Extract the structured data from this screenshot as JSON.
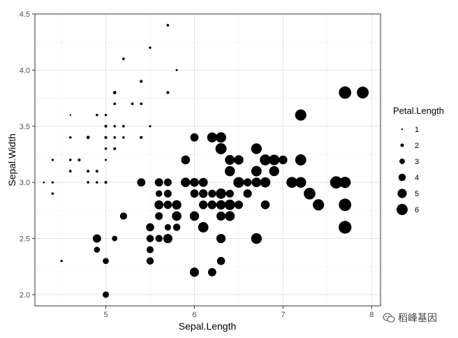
{
  "chart_data": {
    "type": "scatter",
    "xlabel": "Sepal.Length",
    "ylabel": "Sepal.Width",
    "xlim": [
      4.2,
      8.1
    ],
    "ylim": [
      1.9,
      4.5
    ],
    "x_ticks": [
      5,
      6,
      7,
      8
    ],
    "y_ticks": [
      2.0,
      2.5,
      3.0,
      3.5,
      4.0,
      4.5
    ],
    "x_tick_labels": [
      "5",
      "6",
      "7",
      "8"
    ],
    "y_tick_labels": [
      "2.0",
      "2.5",
      "3.0",
      "3.5",
      "4.0",
      "4.5"
    ],
    "grid": true,
    "legend": {
      "title": "Petal.Length",
      "position": "right",
      "labels": [
        "1",
        "2",
        "3",
        "4",
        "5",
        "6"
      ],
      "values": [
        1,
        2,
        3,
        4,
        5,
        6
      ]
    },
    "size_var": "Petal.Length",
    "point_color": "#000000",
    "points": [
      {
        "x": 5.1,
        "y": 3.5,
        "size": 1.4
      },
      {
        "x": 4.9,
        "y": 3.0,
        "size": 1.4
      },
      {
        "x": 4.7,
        "y": 3.2,
        "size": 1.3
      },
      {
        "x": 4.6,
        "y": 3.1,
        "size": 1.5
      },
      {
        "x": 5.0,
        "y": 3.6,
        "size": 1.4
      },
      {
        "x": 5.4,
        "y": 3.9,
        "size": 1.7
      },
      {
        "x": 4.6,
        "y": 3.4,
        "size": 1.4
      },
      {
        "x": 5.0,
        "y": 3.4,
        "size": 1.5
      },
      {
        "x": 4.4,
        "y": 2.9,
        "size": 1.4
      },
      {
        "x": 4.9,
        "y": 3.1,
        "size": 1.5
      },
      {
        "x": 5.4,
        "y": 3.7,
        "size": 1.5
      },
      {
        "x": 4.8,
        "y": 3.4,
        "size": 1.6
      },
      {
        "x": 4.8,
        "y": 3.0,
        "size": 1.4
      },
      {
        "x": 4.3,
        "y": 3.0,
        "size": 1.1
      },
      {
        "x": 5.8,
        "y": 4.0,
        "size": 1.2
      },
      {
        "x": 5.7,
        "y": 4.4,
        "size": 1.5
      },
      {
        "x": 5.4,
        "y": 3.9,
        "size": 1.3
      },
      {
        "x": 5.1,
        "y": 3.5,
        "size": 1.4
      },
      {
        "x": 5.7,
        "y": 3.8,
        "size": 1.7
      },
      {
        "x": 5.1,
        "y": 3.8,
        "size": 1.5
      },
      {
        "x": 5.4,
        "y": 3.4,
        "size": 1.7
      },
      {
        "x": 5.1,
        "y": 3.7,
        "size": 1.5
      },
      {
        "x": 4.6,
        "y": 3.6,
        "size": 1.0
      },
      {
        "x": 5.1,
        "y": 3.3,
        "size": 1.7
      },
      {
        "x": 4.8,
        "y": 3.4,
        "size": 1.9
      },
      {
        "x": 5.0,
        "y": 3.0,
        "size": 1.6
      },
      {
        "x": 5.0,
        "y": 3.4,
        "size": 1.6
      },
      {
        "x": 5.2,
        "y": 3.5,
        "size": 1.5
      },
      {
        "x": 5.2,
        "y": 3.4,
        "size": 1.4
      },
      {
        "x": 4.7,
        "y": 3.2,
        "size": 1.6
      },
      {
        "x": 4.8,
        "y": 3.1,
        "size": 1.6
      },
      {
        "x": 5.4,
        "y": 3.4,
        "size": 1.5
      },
      {
        "x": 5.2,
        "y": 4.1,
        "size": 1.5
      },
      {
        "x": 5.5,
        "y": 4.2,
        "size": 1.4
      },
      {
        "x": 4.9,
        "y": 3.1,
        "size": 1.5
      },
      {
        "x": 5.0,
        "y": 3.2,
        "size": 1.2
      },
      {
        "x": 5.5,
        "y": 3.5,
        "size": 1.3
      },
      {
        "x": 4.9,
        "y": 3.6,
        "size": 1.4
      },
      {
        "x": 4.4,
        "y": 3.0,
        "size": 1.3
      },
      {
        "x": 5.1,
        "y": 3.4,
        "size": 1.5
      },
      {
        "x": 5.0,
        "y": 3.5,
        "size": 1.3
      },
      {
        "x": 4.5,
        "y": 2.3,
        "size": 1.3
      },
      {
        "x": 4.4,
        "y": 3.2,
        "size": 1.3
      },
      {
        "x": 5.0,
        "y": 3.5,
        "size": 1.6
      },
      {
        "x": 5.1,
        "y": 3.8,
        "size": 1.9
      },
      {
        "x": 4.8,
        "y": 3.0,
        "size": 1.4
      },
      {
        "x": 5.1,
        "y": 3.8,
        "size": 1.6
      },
      {
        "x": 4.6,
        "y": 3.2,
        "size": 1.4
      },
      {
        "x": 5.3,
        "y": 3.7,
        "size": 1.5
      },
      {
        "x": 5.0,
        "y": 3.3,
        "size": 1.4
      },
      {
        "x": 7.0,
        "y": 3.2,
        "size": 4.7
      },
      {
        "x": 6.4,
        "y": 3.2,
        "size": 4.5
      },
      {
        "x": 6.9,
        "y": 3.1,
        "size": 4.9
      },
      {
        "x": 5.5,
        "y": 2.3,
        "size": 4.0
      },
      {
        "x": 6.5,
        "y": 2.8,
        "size": 4.6
      },
      {
        "x": 5.7,
        "y": 2.8,
        "size": 4.5
      },
      {
        "x": 6.3,
        "y": 3.3,
        "size": 4.7
      },
      {
        "x": 4.9,
        "y": 2.4,
        "size": 3.3
      },
      {
        "x": 6.6,
        "y": 2.9,
        "size": 4.6
      },
      {
        "x": 5.2,
        "y": 2.7,
        "size": 3.9
      },
      {
        "x": 5.0,
        "y": 2.0,
        "size": 3.5
      },
      {
        "x": 5.9,
        "y": 3.0,
        "size": 4.2
      },
      {
        "x": 6.0,
        "y": 2.2,
        "size": 4.0
      },
      {
        "x": 6.1,
        "y": 2.9,
        "size": 4.7
      },
      {
        "x": 5.6,
        "y": 2.9,
        "size": 3.6
      },
      {
        "x": 6.7,
        "y": 3.1,
        "size": 4.4
      },
      {
        "x": 5.6,
        "y": 3.0,
        "size": 4.5
      },
      {
        "x": 5.8,
        "y": 2.7,
        "size": 4.1
      },
      {
        "x": 6.2,
        "y": 2.2,
        "size": 4.5
      },
      {
        "x": 5.6,
        "y": 2.5,
        "size": 3.9
      },
      {
        "x": 5.9,
        "y": 3.2,
        "size": 4.8
      },
      {
        "x": 6.1,
        "y": 2.8,
        "size": 4.0
      },
      {
        "x": 6.3,
        "y": 2.5,
        "size": 4.9
      },
      {
        "x": 6.1,
        "y": 2.8,
        "size": 4.7
      },
      {
        "x": 6.4,
        "y": 2.9,
        "size": 4.3
      },
      {
        "x": 6.6,
        "y": 3.0,
        "size": 4.4
      },
      {
        "x": 6.8,
        "y": 2.8,
        "size": 4.8
      },
      {
        "x": 6.7,
        "y": 3.0,
        "size": 5.0
      },
      {
        "x": 6.0,
        "y": 2.9,
        "size": 4.5
      },
      {
        "x": 5.7,
        "y": 2.6,
        "size": 3.5
      },
      {
        "x": 5.5,
        "y": 2.4,
        "size": 3.8
      },
      {
        "x": 5.5,
        "y": 2.4,
        "size": 3.7
      },
      {
        "x": 5.8,
        "y": 2.7,
        "size": 3.9
      },
      {
        "x": 6.0,
        "y": 2.7,
        "size": 5.1
      },
      {
        "x": 5.4,
        "y": 3.0,
        "size": 4.5
      },
      {
        "x": 6.0,
        "y": 3.4,
        "size": 4.5
      },
      {
        "x": 6.7,
        "y": 3.1,
        "size": 4.7
      },
      {
        "x": 6.3,
        "y": 2.3,
        "size": 4.4
      },
      {
        "x": 5.6,
        "y": 3.0,
        "size": 4.1
      },
      {
        "x": 5.5,
        "y": 2.5,
        "size": 4.0
      },
      {
        "x": 5.5,
        "y": 2.6,
        "size": 4.4
      },
      {
        "x": 6.1,
        "y": 3.0,
        "size": 4.6
      },
      {
        "x": 5.8,
        "y": 2.6,
        "size": 4.0
      },
      {
        "x": 5.0,
        "y": 2.3,
        "size": 3.3
      },
      {
        "x": 5.6,
        "y": 2.7,
        "size": 4.2
      },
      {
        "x": 5.7,
        "y": 3.0,
        "size": 4.2
      },
      {
        "x": 5.7,
        "y": 2.9,
        "size": 4.2
      },
      {
        "x": 6.2,
        "y": 2.9,
        "size": 4.3
      },
      {
        "x": 5.1,
        "y": 2.5,
        "size": 3.0
      },
      {
        "x": 5.7,
        "y": 2.8,
        "size": 4.1
      },
      {
        "x": 6.3,
        "y": 3.3,
        "size": 6.0
      },
      {
        "x": 5.8,
        "y": 2.7,
        "size": 5.1
      },
      {
        "x": 7.1,
        "y": 3.0,
        "size": 5.9
      },
      {
        "x": 6.3,
        "y": 2.9,
        "size": 5.6
      },
      {
        "x": 6.5,
        "y": 3.0,
        "size": 5.8
      },
      {
        "x": 7.6,
        "y": 3.0,
        "size": 6.6
      },
      {
        "x": 4.9,
        "y": 2.5,
        "size": 4.5
      },
      {
        "x": 7.3,
        "y": 2.9,
        "size": 6.3
      },
      {
        "x": 6.7,
        "y": 2.5,
        "size": 5.8
      },
      {
        "x": 7.2,
        "y": 3.6,
        "size": 6.1
      },
      {
        "x": 6.5,
        "y": 3.2,
        "size": 5.1
      },
      {
        "x": 6.4,
        "y": 2.7,
        "size": 5.3
      },
      {
        "x": 6.8,
        "y": 3.0,
        "size": 5.5
      },
      {
        "x": 5.7,
        "y": 2.5,
        "size": 5.0
      },
      {
        "x": 5.8,
        "y": 2.8,
        "size": 5.1
      },
      {
        "x": 6.4,
        "y": 3.2,
        "size": 5.3
      },
      {
        "x": 6.5,
        "y": 3.0,
        "size": 5.5
      },
      {
        "x": 7.7,
        "y": 3.8,
        "size": 6.7
      },
      {
        "x": 7.7,
        "y": 2.6,
        "size": 6.9
      },
      {
        "x": 6.0,
        "y": 2.2,
        "size": 5.0
      },
      {
        "x": 6.9,
        "y": 3.2,
        "size": 5.7
      },
      {
        "x": 5.6,
        "y": 2.8,
        "size": 4.9
      },
      {
        "x": 7.7,
        "y": 2.8,
        "size": 6.7
      },
      {
        "x": 6.3,
        "y": 2.7,
        "size": 4.9
      },
      {
        "x": 6.7,
        "y": 3.3,
        "size": 5.7
      },
      {
        "x": 7.2,
        "y": 3.2,
        "size": 6.0
      },
      {
        "x": 6.2,
        "y": 2.8,
        "size": 4.8
      },
      {
        "x": 6.1,
        "y": 3.0,
        "size": 4.9
      },
      {
        "x": 6.4,
        "y": 2.8,
        "size": 5.6
      },
      {
        "x": 7.2,
        "y": 3.0,
        "size": 5.8
      },
      {
        "x": 7.4,
        "y": 2.8,
        "size": 6.1
      },
      {
        "x": 7.9,
        "y": 3.8,
        "size": 6.4
      },
      {
        "x": 6.4,
        "y": 2.8,
        "size": 5.6
      },
      {
        "x": 6.3,
        "y": 2.8,
        "size": 5.1
      },
      {
        "x": 6.1,
        "y": 2.6,
        "size": 5.6
      },
      {
        "x": 7.7,
        "y": 3.0,
        "size": 6.1
      },
      {
        "x": 6.3,
        "y": 3.4,
        "size": 5.6
      },
      {
        "x": 6.4,
        "y": 3.1,
        "size": 5.5
      },
      {
        "x": 6.0,
        "y": 3.0,
        "size": 4.8
      },
      {
        "x": 6.9,
        "y": 3.1,
        "size": 5.4
      },
      {
        "x": 6.7,
        "y": 3.1,
        "size": 5.6
      },
      {
        "x": 6.9,
        "y": 3.1,
        "size": 5.1
      },
      {
        "x": 5.8,
        "y": 2.7,
        "size": 5.1
      },
      {
        "x": 6.8,
        "y": 3.2,
        "size": 5.9
      },
      {
        "x": 6.7,
        "y": 3.3,
        "size": 5.7
      },
      {
        "x": 6.7,
        "y": 3.0,
        "size": 5.2
      },
      {
        "x": 6.3,
        "y": 2.5,
        "size": 5.0
      },
      {
        "x": 6.5,
        "y": 3.0,
        "size": 5.2
      },
      {
        "x": 6.2,
        "y": 3.4,
        "size": 5.4
      },
      {
        "x": 5.9,
        "y": 3.0,
        "size": 5.1
      }
    ]
  },
  "watermark": {
    "text": "稻峰基因",
    "icon": "wechat-icon"
  }
}
